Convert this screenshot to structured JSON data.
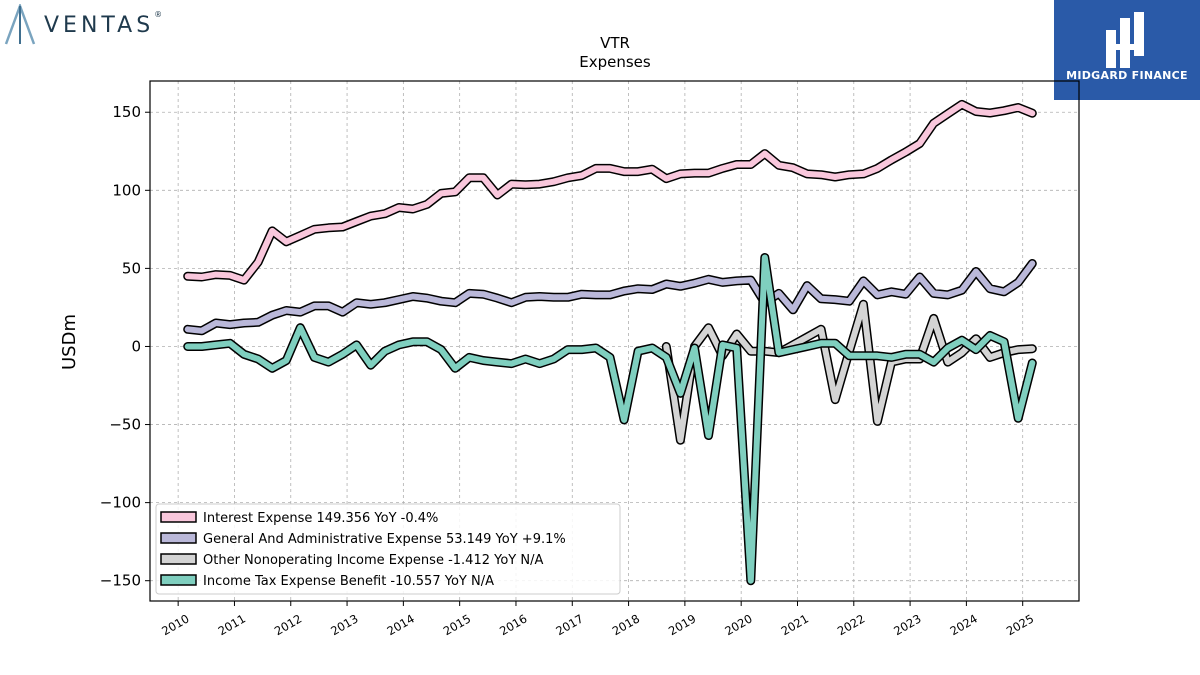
{
  "brand": {
    "name": "VENTAS",
    "mark": "®"
  },
  "badge": {
    "name": "MIDGARD FINANCE"
  },
  "chart_data": {
    "type": "line",
    "title": "VTR",
    "subtitle": "Expenses",
    "ylabel": "USDm",
    "xlabel": "",
    "xlim": [
      2009.5,
      2026.0
    ],
    "ylim": [
      -163,
      170
    ],
    "yticks": [
      150,
      100,
      50,
      0,
      -50,
      -100,
      -150
    ],
    "ytick_labels": [
      "150",
      "100",
      "50",
      "0",
      "−50",
      "−100",
      "−150"
    ],
    "xticks": [
      2010,
      2011,
      2012,
      2013,
      2014,
      2015,
      2016,
      2017,
      2018,
      2019,
      2020,
      2021,
      2022,
      2023,
      2024,
      2025
    ],
    "grid": true,
    "legend_position": "bottom-left",
    "series": [
      {
        "name": "Interest Expense  149.356 YoY -0.4%",
        "color": "#f9c7dc",
        "width": 6,
        "x": [
          2010.17,
          2010.42,
          2010.67,
          2010.92,
          2011.17,
          2011.42,
          2011.67,
          2011.92,
          2012.17,
          2012.42,
          2012.67,
          2012.92,
          2013.17,
          2013.42,
          2013.67,
          2013.92,
          2014.17,
          2014.42,
          2014.67,
          2014.92,
          2015.17,
          2015.42,
          2015.67,
          2015.92,
          2016.17,
          2016.42,
          2016.67,
          2016.92,
          2017.17,
          2017.42,
          2017.67,
          2017.92,
          2018.17,
          2018.42,
          2018.67,
          2018.92,
          2019.17,
          2019.42,
          2019.67,
          2019.92,
          2020.17,
          2020.42,
          2020.67,
          2020.92,
          2021.17,
          2021.42,
          2021.67,
          2021.92,
          2022.17,
          2022.42,
          2022.67,
          2022.92,
          2023.17,
          2023.42,
          2023.67,
          2023.92,
          2024.17,
          2024.42,
          2024.67,
          2024.92,
          2025.17
        ],
        "values": [
          45,
          44.5,
          46,
          45.5,
          42.5,
          54,
          74,
          67,
          71,
          75,
          76,
          76.5,
          80,
          83.5,
          85,
          89,
          88,
          91,
          98,
          99,
          108,
          108,
          97,
          104,
          103.5,
          104,
          105.5,
          108,
          109.5,
          114,
          114,
          112,
          112,
          113.5,
          107.5,
          110.5,
          111,
          111,
          114,
          116.5,
          116.5,
          123.5,
          116,
          114.5,
          110.5,
          110,
          108.5,
          110,
          110.5,
          114,
          119.5,
          124.5,
          130,
          143,
          149,
          155,
          150.5,
          149.5,
          151,
          153,
          149.4
        ]
      },
      {
        "name": "General And Administrative Expense  53.149 YoY +9.1%",
        "color": "#bab8d9",
        "width": 6,
        "x": [
          2010.17,
          2010.42,
          2010.67,
          2010.92,
          2011.17,
          2011.42,
          2011.67,
          2011.92,
          2012.17,
          2012.42,
          2012.67,
          2012.92,
          2013.17,
          2013.42,
          2013.67,
          2013.92,
          2014.17,
          2014.42,
          2014.67,
          2014.92,
          2015.17,
          2015.42,
          2015.67,
          2015.92,
          2016.17,
          2016.42,
          2016.67,
          2016.92,
          2017.17,
          2017.42,
          2017.67,
          2017.92,
          2018.17,
          2018.42,
          2018.67,
          2018.92,
          2019.17,
          2019.42,
          2019.67,
          2019.92,
          2020.17,
          2020.42,
          2020.67,
          2020.92,
          2021.17,
          2021.42,
          2021.67,
          2021.92,
          2022.17,
          2022.42,
          2022.67,
          2022.92,
          2023.17,
          2023.42,
          2023.67,
          2023.92,
          2024.17,
          2024.42,
          2024.67,
          2024.92,
          2025.17
        ],
        "values": [
          11,
          10,
          15,
          14,
          15,
          15.5,
          20,
          23,
          22,
          26,
          26,
          22,
          28,
          27,
          28,
          30,
          32,
          31,
          29,
          28,
          34,
          33.5,
          31,
          28,
          31.5,
          32,
          31.5,
          31.5,
          33.5,
          33,
          33,
          35.5,
          37,
          36.5,
          40,
          38.5,
          40.5,
          43,
          41,
          42,
          42.5,
          28,
          34,
          23.5,
          39,
          30.5,
          30,
          29,
          42,
          33,
          35,
          33.5,
          44.5,
          34,
          33,
          36,
          48,
          37,
          35,
          41,
          53.1
        ]
      },
      {
        "name": "Other Nonoperating Income Expense  -1.412 YoY N/A",
        "color": "#d4d4d4",
        "width": 6,
        "x": [
          2018.67,
          2018.92,
          2019.17,
          2019.42,
          2019.67,
          2019.92,
          2020.17,
          2020.42,
          2020.67,
          2020.92,
          2021.17,
          2021.42,
          2021.67,
          2021.92,
          2022.17,
          2022.42,
          2022.67,
          2022.92,
          2023.17,
          2023.42,
          2023.67,
          2023.92,
          2024.17,
          2024.42,
          2024.67,
          2024.92,
          2025.17
        ],
        "values": [
          0,
          -60,
          0,
          12,
          -6,
          8,
          -3,
          -3,
          -4,
          1,
          6,
          11,
          -34,
          -3,
          27,
          -48,
          -10,
          -8,
          -8,
          18,
          -10,
          -4,
          5,
          -7,
          -4,
          -2,
          -1.4
        ]
      },
      {
        "name": "Income Tax Expense Benefit  -10.557 YoY N/A",
        "color": "#7fcfbf",
        "width": 6,
        "x": [
          2010.17,
          2010.42,
          2010.67,
          2010.92,
          2011.17,
          2011.42,
          2011.67,
          2011.92,
          2012.17,
          2012.42,
          2012.67,
          2012.92,
          2013.17,
          2013.42,
          2013.67,
          2013.92,
          2014.17,
          2014.42,
          2014.67,
          2014.92,
          2015.17,
          2015.42,
          2015.67,
          2015.92,
          2016.17,
          2016.42,
          2016.67,
          2016.92,
          2017.17,
          2017.42,
          2017.67,
          2017.92,
          2018.17,
          2018.42,
          2018.67,
          2018.92,
          2019.17,
          2019.42,
          2019.67,
          2019.92,
          2020.17,
          2020.42,
          2020.67,
          2020.92,
          2021.17,
          2021.42,
          2021.67,
          2021.92,
          2022.17,
          2022.42,
          2022.67,
          2022.92,
          2023.17,
          2023.42,
          2023.67,
          2023.92,
          2024.17,
          2024.42,
          2024.67,
          2024.92,
          2025.17
        ],
        "values": [
          0,
          0,
          1,
          2,
          -5,
          -8,
          -14,
          -9,
          12,
          -7,
          -10,
          -5,
          1,
          -12,
          -3,
          1,
          3,
          3,
          -2,
          -14,
          -7,
          -9,
          -10,
          -11,
          -8,
          -11,
          -8,
          -2,
          -2,
          -1,
          -7,
          -47,
          -3,
          -1,
          -7,
          -30,
          -1,
          -57,
          1,
          -1,
          -150,
          57,
          -4,
          -2,
          0,
          2,
          2,
          -6,
          -6,
          -6,
          -7,
          -5,
          -5,
          -10,
          -1,
          4,
          -2,
          7,
          3,
          -46,
          -10.6
        ]
      }
    ]
  }
}
